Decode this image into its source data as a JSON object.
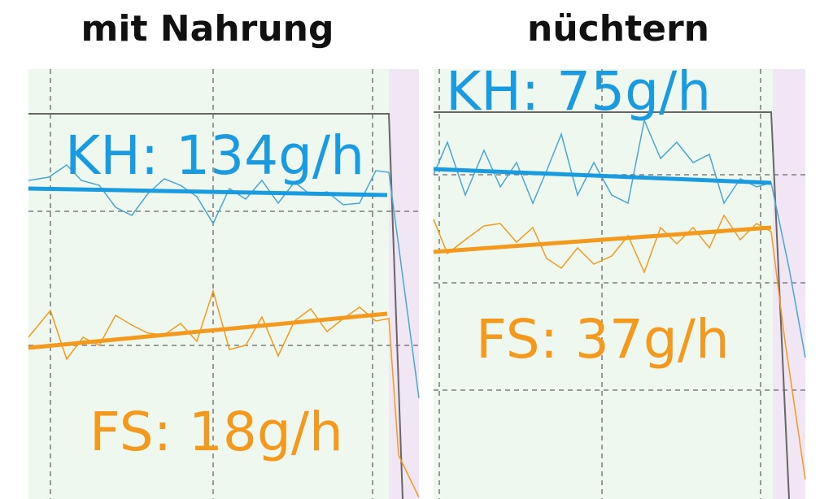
{
  "panels": [
    {
      "title": "mit Nahrung",
      "kh": "KH: 134g/h",
      "fs": "FS: 18g/h"
    },
    {
      "title": "nüchtern",
      "kh": "KH: 75g/h",
      "fs": "FS: 37g/h"
    }
  ]
}
